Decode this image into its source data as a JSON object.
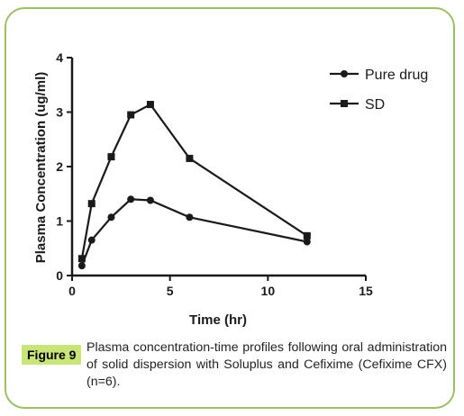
{
  "figure": {
    "label": "Figure 9",
    "caption": "Plasma concentration-time profiles following oral administration of solid dispersion with Soluplus and Cefixime (Cefixime CFX) (n=6).",
    "colors": {
      "frame": "#9bbf63",
      "badge": "#c9e57a",
      "ink": "#1a1a1a"
    }
  },
  "chart_data": {
    "type": "line",
    "title": "",
    "xlabel": "Time (hr)",
    "ylabel": "Plasma Concentration (ug/ml)",
    "xlim": [
      0,
      15
    ],
    "ylim": [
      0,
      4
    ],
    "xticks": [
      0,
      5,
      10,
      15
    ],
    "yticks": [
      0,
      1,
      2,
      3,
      4
    ],
    "legend": "top-right",
    "grid": false,
    "series": [
      {
        "name": "Pure drug",
        "marker": "circle",
        "points": [
          [
            0.5,
            0.18
          ],
          [
            1,
            0.65
          ],
          [
            2,
            1.07
          ],
          [
            3,
            1.4
          ],
          [
            4,
            1.38
          ],
          [
            6,
            1.07
          ],
          [
            12,
            0.62
          ]
        ]
      },
      {
        "name": "SD",
        "marker": "square",
        "points": [
          [
            0.5,
            0.31
          ],
          [
            1,
            1.32
          ],
          [
            2,
            2.18
          ],
          [
            3,
            2.95
          ],
          [
            4,
            3.14
          ],
          [
            6,
            2.15
          ],
          [
            12,
            0.73
          ]
        ]
      }
    ]
  }
}
